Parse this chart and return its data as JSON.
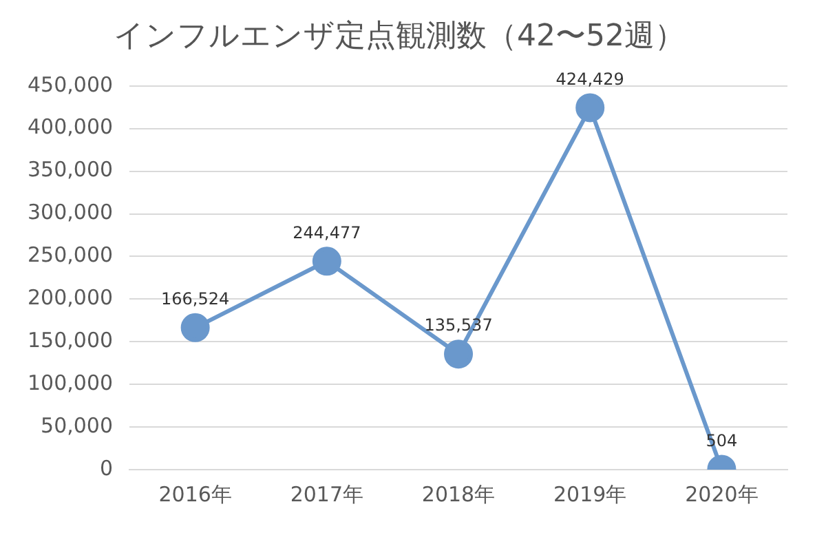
{
  "chart_data": {
    "type": "line",
    "title": "インフルエンザ定点観測数（42〜52週）",
    "categories": [
      "2016年",
      "2017年",
      "2018年",
      "2019年",
      "2020年"
    ],
    "series": [
      {
        "color": "#6a98cc",
        "values": [
          166524,
          244477,
          135537,
          424429,
          504
        ],
        "value_labels": [
          "166,524",
          "244,477",
          "135,537",
          "424,429",
          "504"
        ]
      }
    ],
    "ylim": [
      0,
      450000
    ],
    "yticks": [
      {
        "value": 0,
        "label": "0"
      },
      {
        "value": 50000,
        "label": "50,000"
      },
      {
        "value": 100000,
        "label": "100,000"
      },
      {
        "value": 150000,
        "label": "150,000"
      },
      {
        "value": 200000,
        "label": "200,000"
      },
      {
        "value": 250000,
        "label": "250,000"
      },
      {
        "value": 300000,
        "label": "300,000"
      },
      {
        "value": 350000,
        "label": "350,000"
      },
      {
        "value": 400000,
        "label": "400,000"
      },
      {
        "value": 450000,
        "label": "450,000"
      }
    ],
    "grid": "y",
    "legend": false,
    "marker": "circle",
    "line_style": "solid"
  }
}
